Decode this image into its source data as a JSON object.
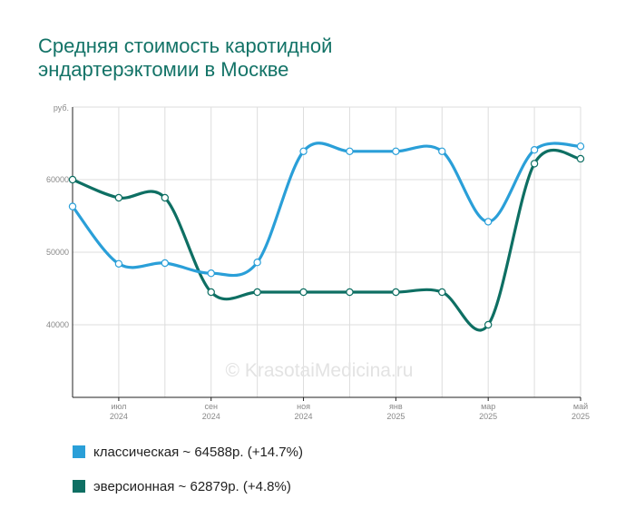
{
  "title_lines": [
    "Средняя стоимость каротидной",
    "эндартерэктомии в Москве"
  ],
  "watermark": "© KrasotaiMedicina.ru",
  "legend": [
    {
      "label": "классическая ~ 64588р. (+14.7%)"
    },
    {
      "label": "эверсионная ~ 62879р. (+4.8%)"
    }
  ],
  "chart_data": {
    "type": "line",
    "title": "Средняя стоимость каротидной эндартерэктомии в Москве",
    "ylabel": "руб.",
    "ylim": [
      30000,
      70000
    ],
    "y_ticks": [
      "60000",
      "50000",
      "40000"
    ],
    "x_tick_labels": [
      {
        "month": "июл",
        "year": "2024"
      },
      {
        "month": "сен",
        "year": "2024"
      },
      {
        "month": "ноя",
        "year": "2024"
      },
      {
        "month": "янв",
        "year": "2025"
      },
      {
        "month": "мар",
        "year": "2025"
      },
      {
        "month": "май",
        "year": "2025"
      }
    ],
    "x": [
      "2024-06",
      "2024-07",
      "2024-08",
      "2024-09",
      "2024-10",
      "2024-11",
      "2024-12",
      "2025-01",
      "2025-02",
      "2025-03",
      "2025-04",
      "2025-05"
    ],
    "grid": true,
    "series": [
      {
        "name": "классическая",
        "color": "#2a9fd8",
        "values": [
          56300,
          48400,
          48500,
          47100,
          48600,
          63900,
          63900,
          63900,
          63900,
          54200,
          64100,
          64588
        ]
      },
      {
        "name": "эверсионная",
        "color": "#0e6f63",
        "values": [
          60000,
          57500,
          57500,
          44500,
          44500,
          44500,
          44500,
          44500,
          44500,
          40000,
          62200,
          62879
        ]
      }
    ]
  }
}
